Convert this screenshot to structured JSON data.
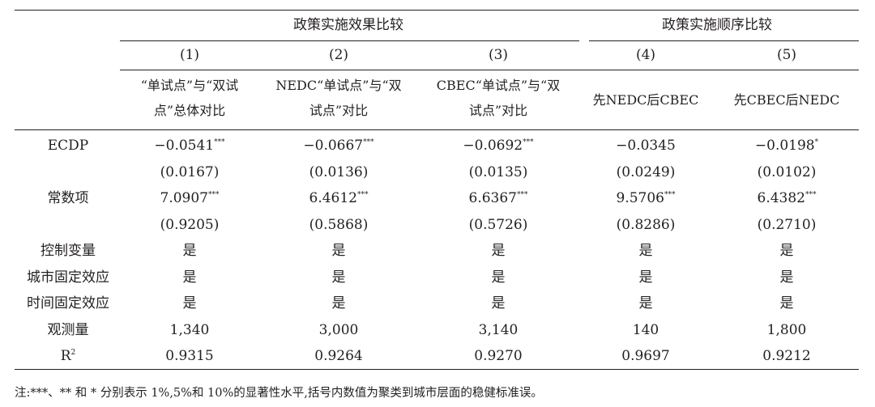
{
  "group_headers": {
    "effect_comparison": "政策实施效果比较",
    "order_comparison": "政策实施顺序比较"
  },
  "columns": [
    {
      "num": "(1)",
      "line1": "“单试点”与“双试",
      "line2": "点”总体对比"
    },
    {
      "num": "(2)",
      "line1": "NEDC“单试点”与“双",
      "line2": "试点”对比"
    },
    {
      "num": "(3)",
      "line1": "CBEC“单试点”与“双",
      "line2": "试点”对比"
    },
    {
      "num": "(4)",
      "line1": "先NEDC后CBEC",
      "line2": ""
    },
    {
      "num": "(5)",
      "line1": "先CBEC后NEDC",
      "line2": ""
    }
  ],
  "rows": [
    {
      "label": "ECDP",
      "cells": [
        {
          "v": "−0.0541",
          "s": "***"
        },
        {
          "v": "−0.0667",
          "s": "***"
        },
        {
          "v": "−0.0692",
          "s": "***"
        },
        {
          "v": "−0.0345",
          "s": ""
        },
        {
          "v": "−0.0198",
          "s": "*"
        }
      ]
    },
    {
      "label": "",
      "cells": [
        {
          "v": "(0.0167)",
          "s": ""
        },
        {
          "v": "(0.0136)",
          "s": ""
        },
        {
          "v": "(0.0135)",
          "s": ""
        },
        {
          "v": "(0.0249)",
          "s": ""
        },
        {
          "v": "(0.0102)",
          "s": ""
        }
      ]
    },
    {
      "label": "常数项",
      "cells": [
        {
          "v": "7.0907",
          "s": "***"
        },
        {
          "v": "6.4612",
          "s": "***"
        },
        {
          "v": "6.6367",
          "s": "***"
        },
        {
          "v": "9.5706",
          "s": "***"
        },
        {
          "v": "6.4382",
          "s": "***"
        }
      ]
    },
    {
      "label": "",
      "cells": [
        {
          "v": "(0.9205)",
          "s": ""
        },
        {
          "v": "(0.5868)",
          "s": ""
        },
        {
          "v": "(0.5726)",
          "s": ""
        },
        {
          "v": "(0.8286)",
          "s": ""
        },
        {
          "v": "(0.2710)",
          "s": ""
        }
      ]
    },
    {
      "label": "控制变量",
      "cells": [
        {
          "v": "是",
          "s": ""
        },
        {
          "v": "是",
          "s": ""
        },
        {
          "v": "是",
          "s": ""
        },
        {
          "v": "是",
          "s": ""
        },
        {
          "v": "是",
          "s": ""
        }
      ]
    },
    {
      "label": "城市固定效应",
      "cells": [
        {
          "v": "是",
          "s": ""
        },
        {
          "v": "是",
          "s": ""
        },
        {
          "v": "是",
          "s": ""
        },
        {
          "v": "是",
          "s": ""
        },
        {
          "v": "是",
          "s": ""
        }
      ]
    },
    {
      "label": "时间固定效应",
      "cells": [
        {
          "v": "是",
          "s": ""
        },
        {
          "v": "是",
          "s": ""
        },
        {
          "v": "是",
          "s": ""
        },
        {
          "v": "是",
          "s": ""
        },
        {
          "v": "是",
          "s": ""
        }
      ]
    },
    {
      "label": "观测量",
      "cells": [
        {
          "v": "1,340",
          "s": ""
        },
        {
          "v": "3,000",
          "s": ""
        },
        {
          "v": "3,140",
          "s": ""
        },
        {
          "v": "140",
          "s": ""
        },
        {
          "v": "1,800",
          "s": ""
        }
      ]
    },
    {
      "label": "R",
      "label_sup": "2",
      "cells": [
        {
          "v": "0.9315",
          "s": ""
        },
        {
          "v": "0.9264",
          "s": ""
        },
        {
          "v": "0.9270",
          "s": ""
        },
        {
          "v": "0.9697",
          "s": ""
        },
        {
          "v": "0.9212",
          "s": ""
        }
      ]
    }
  ],
  "note": "注:***、** 和 * 分别表示 1%,5%和 10%的显著性水平,括号内数值为聚类到城市层面的稳健标准误。"
}
